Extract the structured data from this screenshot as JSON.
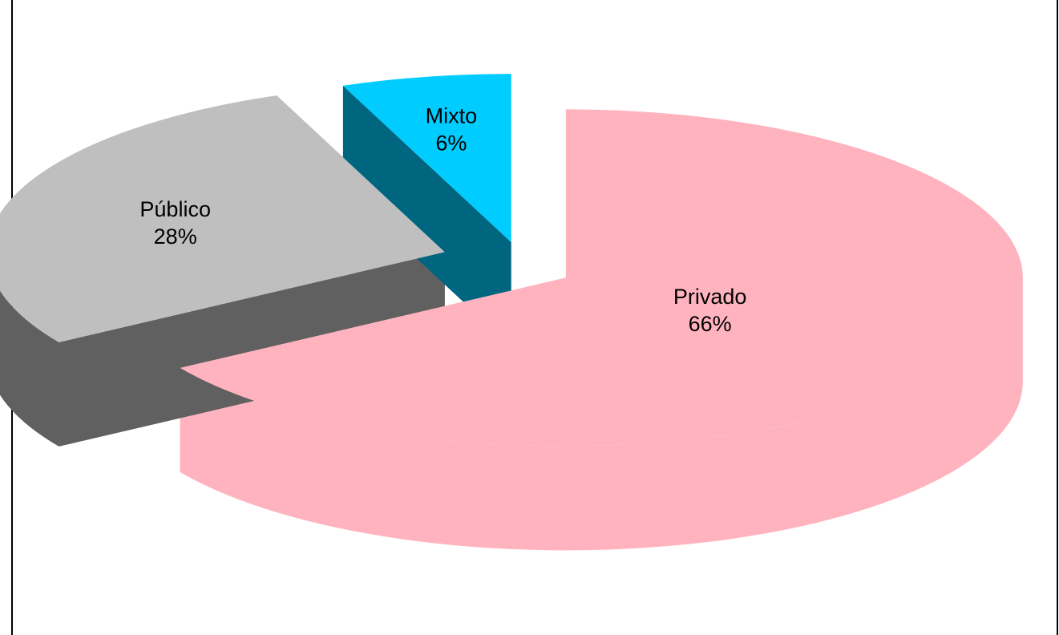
{
  "chart_data": {
    "type": "pie",
    "style": "3d-exploded",
    "title": "",
    "slices": [
      {
        "name": "Privado",
        "value": 66,
        "percent_label": "66%",
        "top_color": "#FFB3BF",
        "side_color": "#FFB3BF"
      },
      {
        "name": "Público",
        "value": 28,
        "percent_label": "28%",
        "top_color": "#BFBFBF",
        "side_color": "#606060"
      },
      {
        "name": "Mixto",
        "value": 6,
        "percent_label": "6%",
        "top_color": "#00CCFF",
        "side_color": "#006680"
      }
    ],
    "legend": "none",
    "labels": "inside"
  }
}
